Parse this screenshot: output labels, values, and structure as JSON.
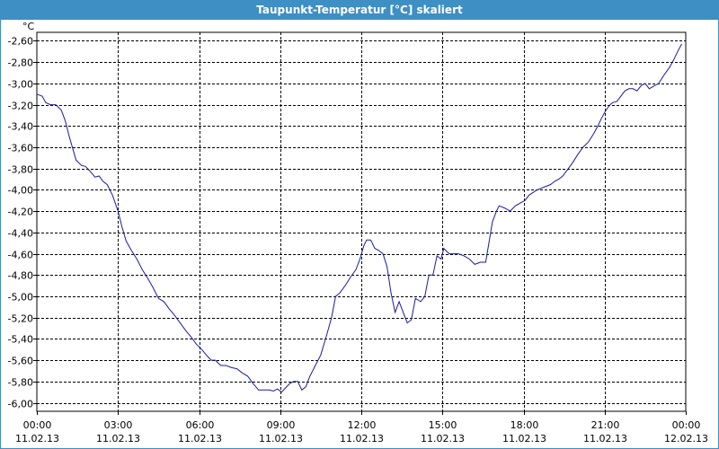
{
  "window": {
    "title": "Taupunkt-Temperatur [°C] skaliert"
  },
  "colors": {
    "title_bar": "#3d8fc4",
    "line": "#1a1aa6",
    "grid": "#000000"
  },
  "chart_data": {
    "type": "line",
    "unit_label": "°C",
    "ylim": [
      -6.08,
      -2.52
    ],
    "y_ticks": [
      -2.6,
      -2.8,
      -3.0,
      -3.2,
      -3.4,
      -3.6,
      -3.8,
      -4.0,
      -4.2,
      -4.4,
      -4.6,
      -4.8,
      -5.0,
      -5.2,
      -5.4,
      -5.6,
      -5.8,
      -6.0
    ],
    "y_tick_labels": [
      "-2,60",
      "-2,80",
      "-3,00",
      "-3,20",
      "-3,40",
      "-3,60",
      "-3,80",
      "-4,00",
      "-4,20",
      "-4,40",
      "-4,60",
      "-4,80",
      "-5,00",
      "-5,20",
      "-5,40",
      "-5,60",
      "-5,80",
      "-6,00"
    ],
    "xlim": [
      0,
      24
    ],
    "x_ticks": [
      0,
      3,
      6,
      9,
      12,
      15,
      18,
      21,
      24
    ],
    "x_tick_labels": [
      {
        "time": "00:00",
        "date": "11.02.13"
      },
      {
        "time": "03:00",
        "date": "11.02.13"
      },
      {
        "time": "06:00",
        "date": "11.02.13"
      },
      {
        "time": "09:00",
        "date": "11.02.13"
      },
      {
        "time": "12:00",
        "date": "11.02.13"
      },
      {
        "time": "15:00",
        "date": "11.02.13"
      },
      {
        "time": "18:00",
        "date": "11.02.13"
      },
      {
        "time": "21:00",
        "date": "11.02.13"
      },
      {
        "time": "00:00",
        "date": "12.02.13"
      }
    ],
    "grid": true,
    "series": [
      {
        "x": [
          0.0,
          0.2,
          0.33,
          0.5,
          0.7,
          0.9,
          1.05,
          1.2,
          1.45,
          1.65,
          1.8,
          1.95,
          2.15,
          2.3,
          2.45,
          2.6,
          2.8,
          3.0,
          3.15,
          3.3,
          3.5,
          3.7,
          3.9,
          4.1,
          4.3,
          4.5,
          4.7,
          4.9,
          5.1,
          5.3,
          5.5,
          5.7,
          5.9,
          6.1,
          6.3,
          6.45,
          6.6,
          6.8,
          7.0,
          7.2,
          7.4,
          7.6,
          7.8,
          8.0,
          8.2,
          8.4,
          8.6,
          8.75,
          8.9,
          9.05,
          9.2,
          9.35,
          9.5,
          9.65,
          9.8,
          9.95,
          10.1,
          10.3,
          10.5,
          10.7,
          10.9,
          11.05,
          11.2,
          11.4,
          11.6,
          11.8,
          11.95,
          12.1,
          12.2,
          12.35,
          12.5,
          12.65,
          12.8,
          12.95,
          13.1,
          13.25,
          13.4,
          13.55,
          13.7,
          13.85,
          14.0,
          14.2,
          14.35,
          14.5,
          14.65,
          14.8,
          14.95,
          15.05,
          15.25,
          15.4,
          15.6,
          15.8,
          16.0,
          16.2,
          16.4,
          16.6,
          16.85,
          17.0,
          17.1,
          17.3,
          17.5,
          17.7,
          17.9,
          18.05,
          18.2,
          18.5,
          18.8,
          19.0,
          19.15,
          19.3,
          19.45,
          19.6,
          19.8,
          20.0,
          20.2,
          20.4,
          20.6,
          20.75,
          20.9,
          21.05,
          21.2,
          21.3,
          21.45,
          21.6,
          21.75,
          21.9,
          22.05,
          22.2,
          22.35,
          22.5,
          22.65,
          22.85,
          23.0,
          23.2,
          23.4,
          23.55,
          23.7,
          23.85
        ],
        "y": [
          -3.1,
          -3.12,
          -3.18,
          -3.2,
          -3.2,
          -3.25,
          -3.35,
          -3.5,
          -3.72,
          -3.77,
          -3.78,
          -3.82,
          -3.88,
          -3.87,
          -3.92,
          -3.95,
          -4.05,
          -4.2,
          -4.35,
          -4.48,
          -4.57,
          -4.65,
          -4.75,
          -4.83,
          -4.92,
          -5.02,
          -5.05,
          -5.12,
          -5.18,
          -5.25,
          -5.32,
          -5.38,
          -5.45,
          -5.5,
          -5.56,
          -5.6,
          -5.6,
          -5.65,
          -5.65,
          -5.67,
          -5.68,
          -5.72,
          -5.75,
          -5.82,
          -5.88,
          -5.88,
          -5.88,
          -5.89,
          -5.87,
          -5.9,
          -5.86,
          -5.82,
          -5.8,
          -5.8,
          -5.88,
          -5.85,
          -5.75,
          -5.65,
          -5.55,
          -5.38,
          -5.2,
          -5.0,
          -4.97,
          -4.9,
          -4.82,
          -4.75,
          -4.65,
          -4.52,
          -4.47,
          -4.47,
          -4.55,
          -4.57,
          -4.6,
          -4.72,
          -4.97,
          -5.15,
          -5.05,
          -5.15,
          -5.25,
          -5.22,
          -5.02,
          -5.05,
          -5.0,
          -4.8,
          -4.8,
          -4.62,
          -4.65,
          -4.55,
          -4.6,
          -4.6,
          -4.6,
          -4.62,
          -4.65,
          -4.7,
          -4.68,
          -4.68,
          -4.3,
          -4.2,
          -4.15,
          -4.17,
          -4.2,
          -4.15,
          -4.12,
          -4.1,
          -4.05,
          -4.0,
          -3.97,
          -3.95,
          -3.92,
          -3.9,
          -3.87,
          -3.82,
          -3.75,
          -3.67,
          -3.6,
          -3.55,
          -3.47,
          -3.4,
          -3.32,
          -3.25,
          -3.2,
          -3.18,
          -3.17,
          -3.12,
          -3.07,
          -3.05,
          -3.05,
          -3.07,
          -3.02,
          -3.0,
          -3.05,
          -3.02,
          -3.0,
          -2.92,
          -2.85,
          -2.78,
          -2.7,
          -2.63
        ]
      }
    ]
  }
}
